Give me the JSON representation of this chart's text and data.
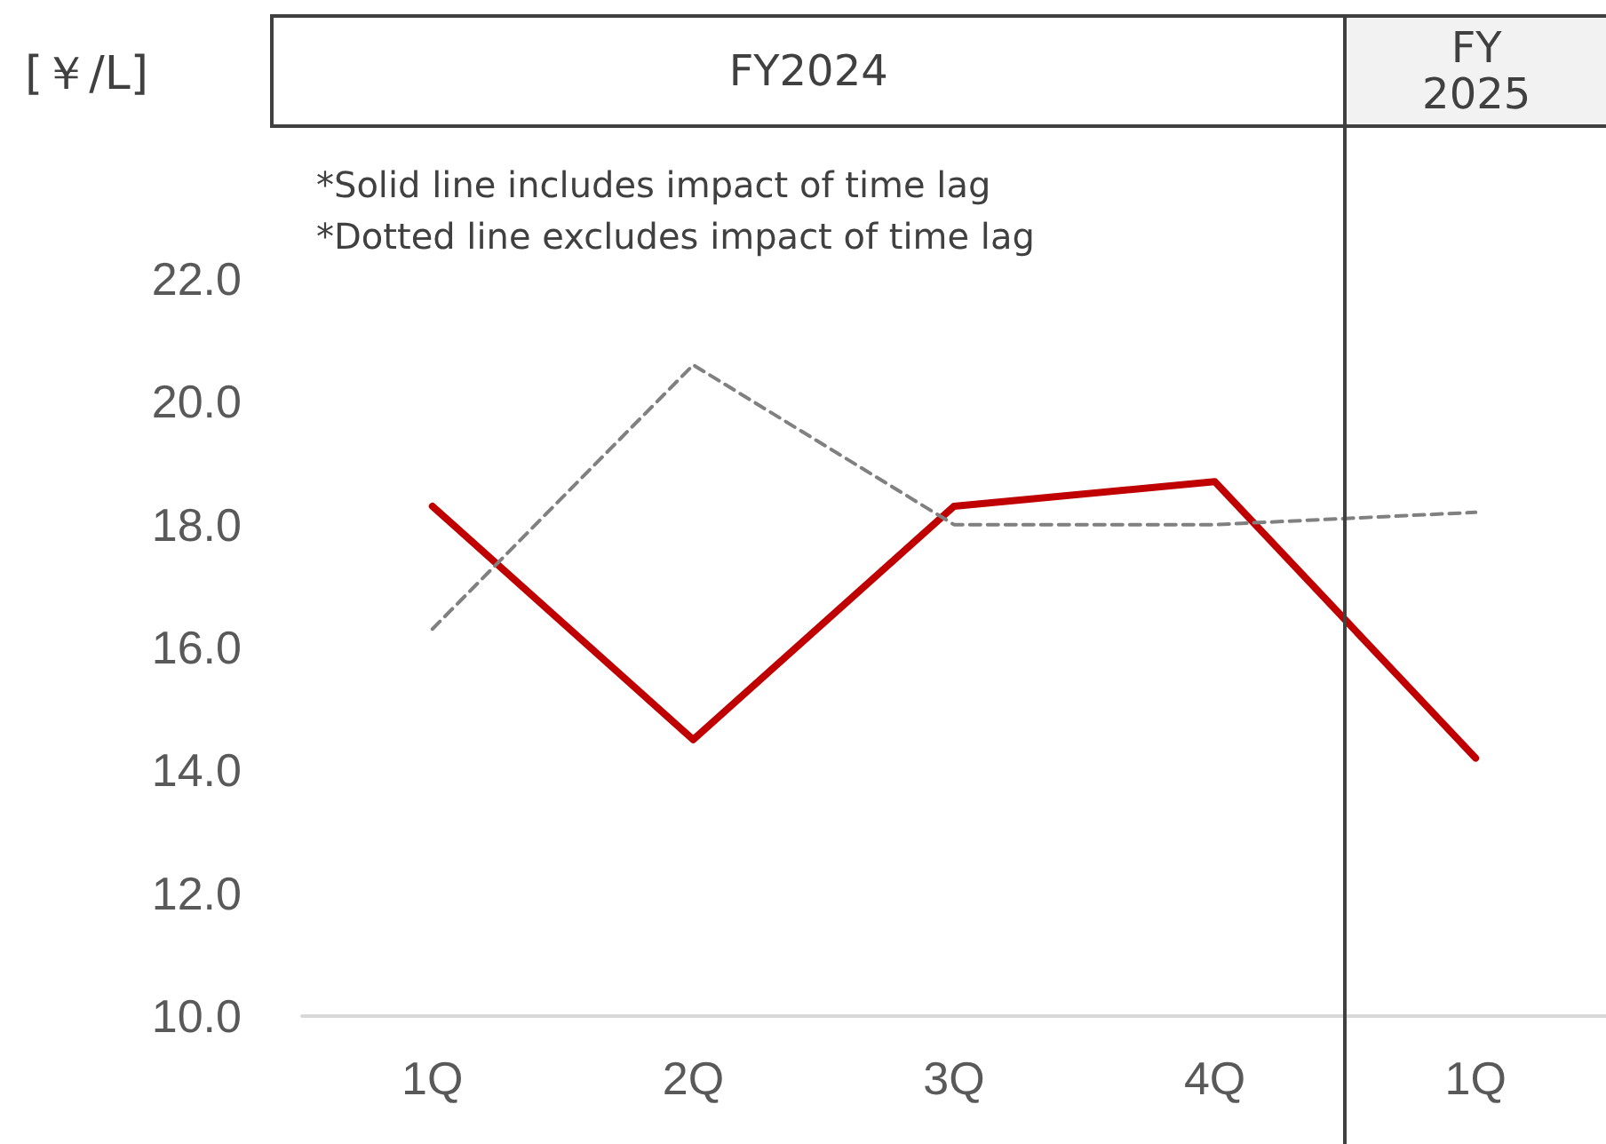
{
  "chart_data": {
    "type": "line",
    "ylabel": "[￥/L]",
    "categories": [
      "1Q",
      "2Q",
      "3Q",
      "4Q",
      "1Q"
    ],
    "series": [
      {
        "color": "#c00000",
        "values": [
          18.3,
          14.5,
          18.3,
          18.7,
          14.2
        ],
        "line_style": "solid"
      },
      {
        "color": "#808080",
        "values": [
          16.3,
          20.6,
          18.0,
          18.0,
          18.2
        ],
        "line_style": "dashed"
      }
    ],
    "ylim": [
      10,
      22
    ],
    "yticks": [
      {
        "value": 10,
        "label": "10.0"
      },
      {
        "value": 12,
        "label": "12.0"
      },
      {
        "value": 14,
        "label": "14.0"
      },
      {
        "value": 16,
        "label": "16.0"
      },
      {
        "value": 18,
        "label": "18.0"
      },
      {
        "value": 20,
        "label": "20.0"
      },
      {
        "value": 22,
        "label": "22.0"
      }
    ],
    "marker": "none",
    "grid": false,
    "annotations": [
      "*Solid line includes impact of time lag",
      "*Dotted line excludes impact of time lag",
      "FY2024",
      "FY\n2025"
    ]
  }
}
